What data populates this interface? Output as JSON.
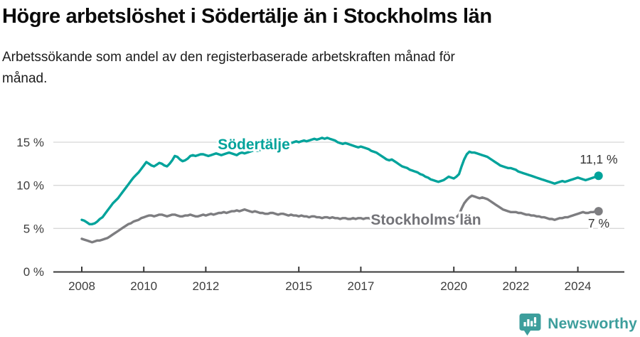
{
  "header": {
    "title": "Högre arbetslöshet i Södertälje än i Stockholms län",
    "subtitle_lines": [
      "Arbetssökande som andel av den registerbaserade arbetskraften månad för",
      "månad."
    ]
  },
  "chart_data": {
    "type": "line",
    "frequency": "monthly",
    "x_start": "2008-01",
    "x_end": "2024-09",
    "unit": "%",
    "grid": "horizontal",
    "legend_position": "inline-labels",
    "ylim": [
      0,
      16.5
    ],
    "y_ticks": [
      0,
      5,
      10,
      15
    ],
    "y_tick_suffix": " %",
    "x_ticks": [
      2008,
      2010,
      2012,
      2015,
      2017,
      2020,
      2022,
      2024
    ],
    "series": [
      {
        "name": "Södertälje",
        "color": "#00A39B",
        "end_label": "11,1 %",
        "end_value": 11.1,
        "values": [
          6.0,
          5.9,
          5.7,
          5.5,
          5.5,
          5.6,
          5.8,
          6.1,
          6.3,
          6.7,
          7.1,
          7.5,
          7.9,
          8.2,
          8.5,
          8.9,
          9.3,
          9.7,
          10.1,
          10.5,
          10.9,
          11.2,
          11.5,
          11.9,
          12.3,
          12.7,
          12.5,
          12.3,
          12.2,
          12.4,
          12.6,
          12.5,
          12.3,
          12.2,
          12.5,
          12.9,
          13.4,
          13.3,
          13.0,
          12.8,
          12.9,
          13.1,
          13.4,
          13.5,
          13.4,
          13.5,
          13.6,
          13.6,
          13.5,
          13.4,
          13.5,
          13.6,
          13.7,
          13.6,
          13.5,
          13.6,
          13.7,
          13.8,
          13.7,
          13.6,
          13.5,
          13.7,
          13.8,
          13.7,
          13.8,
          13.9,
          14.0,
          14.1,
          14.0,
          14.1,
          14.2,
          14.3,
          14.4,
          14.5,
          14.4,
          14.5,
          14.6,
          14.7,
          14.8,
          14.9,
          14.8,
          14.9,
          15.0,
          15.1,
          15.0,
          15.1,
          15.2,
          15.1,
          15.2,
          15.3,
          15.4,
          15.3,
          15.4,
          15.5,
          15.4,
          15.5,
          15.4,
          15.3,
          15.2,
          15.0,
          14.9,
          14.8,
          14.9,
          14.8,
          14.7,
          14.6,
          14.5,
          14.4,
          14.5,
          14.4,
          14.3,
          14.2,
          14.0,
          13.9,
          13.8,
          13.6,
          13.4,
          13.2,
          13.0,
          12.9,
          13.0,
          12.8,
          12.6,
          12.4,
          12.2,
          12.1,
          12.0,
          11.8,
          11.7,
          11.6,
          11.5,
          11.3,
          11.2,
          11.0,
          10.9,
          10.7,
          10.6,
          10.5,
          10.4,
          10.5,
          10.6,
          10.8,
          11.0,
          10.9,
          10.8,
          11.0,
          11.3,
          12.2,
          13.0,
          13.6,
          13.9,
          13.8,
          13.8,
          13.7,
          13.6,
          13.5,
          13.4,
          13.3,
          13.1,
          12.9,
          12.7,
          12.5,
          12.3,
          12.2,
          12.1,
          12.0,
          12.0,
          11.9,
          11.8,
          11.6,
          11.5,
          11.4,
          11.3,
          11.2,
          11.1,
          11.0,
          10.9,
          10.8,
          10.7,
          10.6,
          10.5,
          10.4,
          10.3,
          10.2,
          10.3,
          10.4,
          10.5,
          10.4,
          10.5,
          10.6,
          10.7,
          10.8,
          10.9,
          10.8,
          10.7,
          10.6,
          10.7,
          10.8,
          10.9,
          11.0,
          11.1
        ]
      },
      {
        "name": "Stockholms län",
        "color": "#7D7D80",
        "end_label": "7 %",
        "end_value": 7.0,
        "values": [
          3.8,
          3.7,
          3.6,
          3.5,
          3.4,
          3.5,
          3.6,
          3.6,
          3.7,
          3.8,
          3.9,
          4.1,
          4.3,
          4.5,
          4.7,
          4.9,
          5.1,
          5.3,
          5.5,
          5.6,
          5.8,
          5.9,
          6.0,
          6.2,
          6.3,
          6.4,
          6.5,
          6.5,
          6.4,
          6.5,
          6.6,
          6.6,
          6.5,
          6.4,
          6.5,
          6.6,
          6.6,
          6.5,
          6.4,
          6.4,
          6.5,
          6.5,
          6.6,
          6.5,
          6.4,
          6.4,
          6.5,
          6.6,
          6.5,
          6.6,
          6.7,
          6.6,
          6.7,
          6.8,
          6.8,
          6.9,
          6.8,
          6.9,
          7.0,
          7.0,
          7.1,
          7.0,
          7.1,
          7.2,
          7.1,
          7.0,
          6.9,
          7.0,
          6.9,
          6.8,
          6.8,
          6.7,
          6.7,
          6.8,
          6.8,
          6.7,
          6.6,
          6.7,
          6.7,
          6.6,
          6.5,
          6.6,
          6.5,
          6.5,
          6.4,
          6.5,
          6.4,
          6.4,
          6.3,
          6.4,
          6.4,
          6.3,
          6.3,
          6.2,
          6.3,
          6.3,
          6.2,
          6.3,
          6.2,
          6.2,
          6.1,
          6.2,
          6.2,
          6.1,
          6.1,
          6.2,
          6.1,
          6.2,
          6.2,
          6.1,
          6.2,
          6.2,
          6.1,
          6.2,
          6.2,
          6.3,
          6.2,
          6.2,
          6.3,
          6.2,
          6.2,
          6.1,
          6.1,
          6.0,
          6.0,
          6.1,
          6.1,
          6.0,
          5.9,
          6.0,
          6.0,
          5.9,
          6.0,
          6.0,
          5.9,
          5.9,
          6.0,
          6.0,
          6.1,
          6.1,
          6.0,
          6.1,
          6.1,
          6.2,
          6.2,
          6.3,
          6.6,
          7.3,
          7.9,
          8.3,
          8.6,
          8.8,
          8.7,
          8.6,
          8.5,
          8.6,
          8.5,
          8.4,
          8.2,
          8.0,
          7.8,
          7.6,
          7.4,
          7.2,
          7.1,
          7.0,
          6.9,
          6.9,
          6.9,
          6.8,
          6.8,
          6.7,
          6.6,
          6.6,
          6.5,
          6.5,
          6.4,
          6.4,
          6.3,
          6.3,
          6.2,
          6.1,
          6.1,
          6.0,
          6.1,
          6.2,
          6.2,
          6.3,
          6.3,
          6.4,
          6.5,
          6.6,
          6.7,
          6.8,
          6.9,
          6.8,
          6.8,
          6.9,
          6.9,
          7.0,
          7.0
        ]
      }
    ]
  },
  "footer": {
    "brand": "Newsworthy",
    "brand_color": "#3D9E9C"
  }
}
